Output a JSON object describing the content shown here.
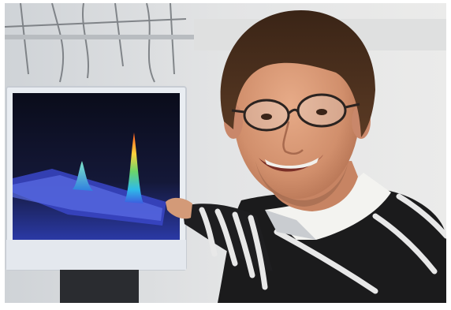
{
  "image": {
    "caption": "",
    "colors": {
      "background": "#e4e5e6",
      "monitor_bezel": "#e9edf2",
      "screen": "#0d0f22",
      "sweater": "#1b1b1c",
      "stripe": "#e8e8e8",
      "collar": "#f3f3f0",
      "hair": "#4a2e1c",
      "skin": "#d69877"
    },
    "icons": [
      "monitor-icon",
      "plot-peak-icon",
      "glasses-icon"
    ]
  }
}
